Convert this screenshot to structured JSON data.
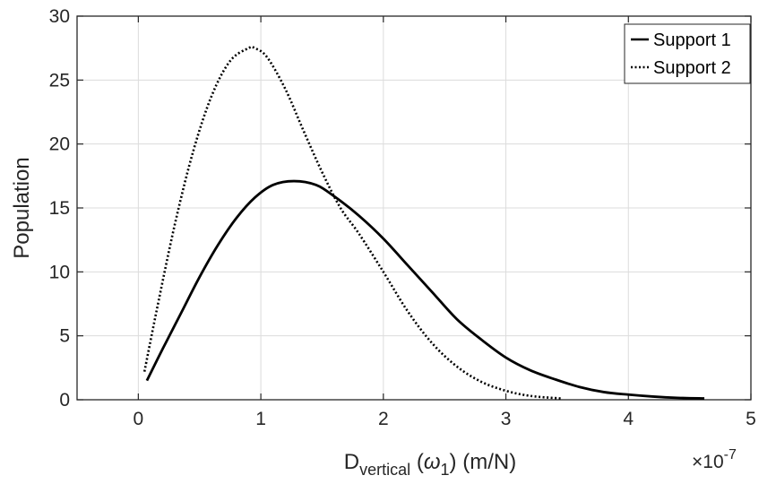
{
  "chart_data": {
    "type": "line",
    "title": "",
    "xlabel": {
      "base": "D",
      "subscript": "vertical",
      "middle_open": " (",
      "symbol": "ω",
      "symbol_subscript": "1",
      "tail": ") (m/N)"
    },
    "ylabel": "Population",
    "x_exponent": {
      "prefix": "×10",
      "power": "-7"
    },
    "xlim": [
      -0.5,
      5
    ],
    "ylim": [
      0,
      30
    ],
    "xticks": [
      0,
      1,
      2,
      3,
      4,
      5
    ],
    "xtick_labels": [
      "0",
      "1",
      "2",
      "3",
      "4",
      "5"
    ],
    "yticks": [
      0,
      5,
      10,
      15,
      20,
      25,
      30
    ],
    "ytick_labels": [
      "0",
      "5",
      "10",
      "15",
      "20",
      "25",
      "30"
    ],
    "grid": true,
    "legend_position": "top-right",
    "series": [
      {
        "name": "Support 1",
        "style": "solid",
        "color": "#000000",
        "x": [
          0.07,
          0.2,
          0.35,
          0.5,
          0.65,
          0.8,
          0.95,
          1.1,
          1.27,
          1.45,
          1.6,
          1.8,
          2.0,
          2.2,
          2.4,
          2.6,
          2.8,
          3.0,
          3.2,
          3.4,
          3.6,
          3.8,
          4.0,
          4.2,
          4.4,
          4.62
        ],
        "y": [
          1.5,
          4.0,
          6.8,
          9.6,
          12.1,
          14.2,
          15.8,
          16.8,
          17.1,
          16.8,
          15.9,
          14.4,
          12.6,
          10.5,
          8.4,
          6.3,
          4.7,
          3.3,
          2.3,
          1.6,
          1.0,
          0.6,
          0.4,
          0.25,
          0.15,
          0.1
        ]
      },
      {
        "name": "Support 2",
        "style": "dotted",
        "color": "#000000",
        "x": [
          0.05,
          0.15,
          0.3,
          0.45,
          0.6,
          0.75,
          0.9,
          0.95,
          1.05,
          1.2,
          1.35,
          1.5,
          1.65,
          1.8,
          2.0,
          2.2,
          2.4,
          2.6,
          2.8,
          3.0,
          3.2,
          3.45
        ],
        "y": [
          2.2,
          7.0,
          13.8,
          19.5,
          23.8,
          26.5,
          27.5,
          27.5,
          26.8,
          24.3,
          21.0,
          17.8,
          15.0,
          13.0,
          10.0,
          6.9,
          4.4,
          2.6,
          1.4,
          0.7,
          0.3,
          0.1
        ]
      }
    ]
  }
}
